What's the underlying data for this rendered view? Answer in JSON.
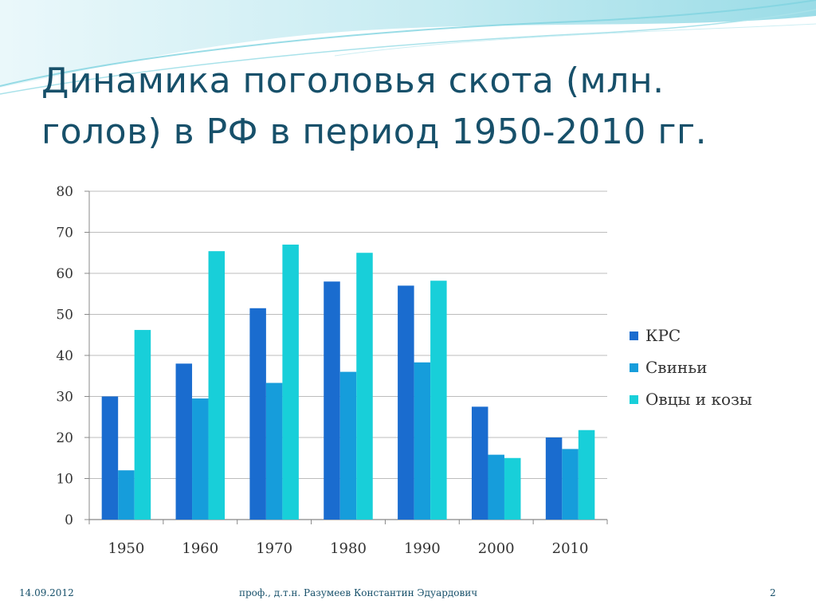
{
  "slide": {
    "title_line1": "Динамика поголовья скота (млн.",
    "title_line2": "голов) в РФ в период 1950-2010 гг.",
    "footer_date": "14.09.2012",
    "footer_author": "проф., д.т.н. Разумеев Константин Эдуардович",
    "page_number": "2"
  },
  "colors": {
    "title": "#17506a",
    "krs": "#1a6ccf",
    "svini": "#169ddb",
    "ovcy": "#18cfd9",
    "grid": "#bcbcbc",
    "deco_light": "#cdeef3",
    "deco_mid": "#7fd3e0"
  },
  "chart_data": {
    "type": "bar",
    "categories": [
      "1950",
      "1960",
      "1970",
      "1980",
      "1990",
      "2000",
      "2010"
    ],
    "series": [
      {
        "name": "КРС",
        "values": [
          30,
          38,
          51.5,
          58,
          57,
          27.5,
          20
        ]
      },
      {
        "name": "Свиньи",
        "values": [
          12,
          29.5,
          33.3,
          36,
          38.3,
          15.8,
          17.2
        ]
      },
      {
        "name": "Овцы и козы",
        "values": [
          46.2,
          65.4,
          67,
          65,
          58.2,
          15,
          21.8
        ]
      }
    ],
    "yticks": [
      "0",
      "10",
      "20",
      "30",
      "40",
      "50",
      "60",
      "70",
      "80"
    ],
    "ylim": [
      0,
      80
    ],
    "grid": true,
    "legend_position": "right"
  }
}
